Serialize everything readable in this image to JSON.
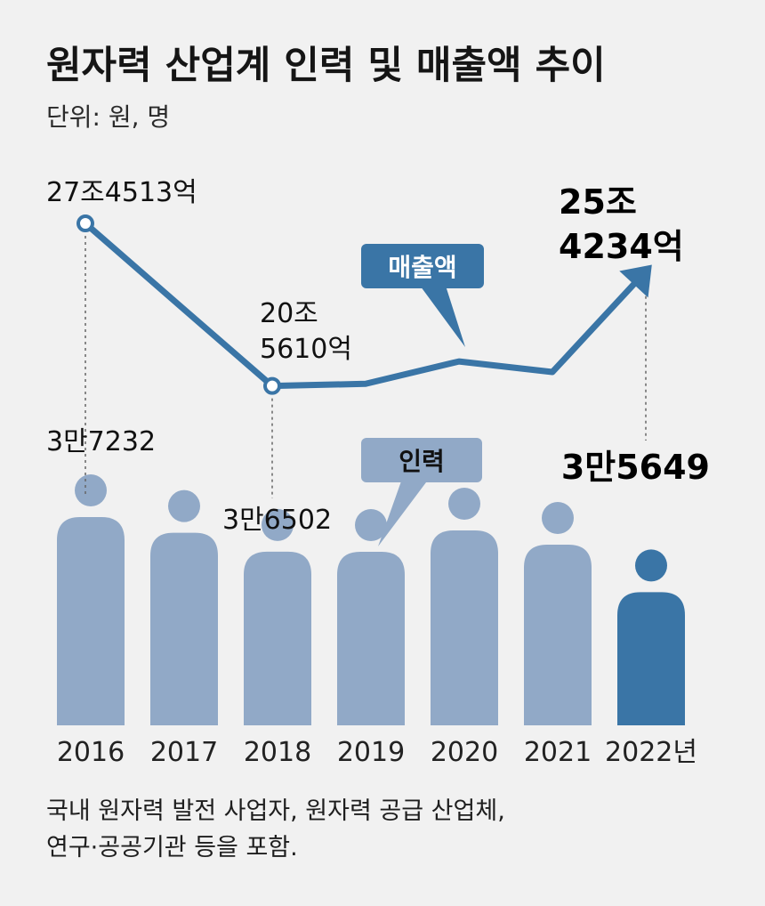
{
  "title": "원자력 산업계 인력 및 매출액 추이",
  "unit_note": "단위: 원, 명",
  "footnote_lines": [
    "국내 원자력 발전 사업자, 원자력 공급 산업체,",
    "연구·공공기관 등을 포함."
  ],
  "colors": {
    "background": "#f1f1f1",
    "line": "#3a75a6",
    "person": "#91a9c7",
    "person_highlight": "#3a75a6",
    "callout_sales": "#3a75a6",
    "callout_staff": "#91a9c7"
  },
  "chart_data": {
    "type": "bar",
    "categories": [
      "2016",
      "2017",
      "2018",
      "2019",
      "2020",
      "2021",
      "2022년"
    ],
    "series": [
      {
        "name": "인력",
        "unit": "명",
        "values": [
          37232,
          36900,
          36502,
          36500,
          36950,
          36650,
          35649
        ],
        "labels": [
          "3만7232",
          "",
          "3만6502",
          "",
          "",
          "",
          "3만5649"
        ],
        "highlight_index": 6
      },
      {
        "name": "매출액",
        "unit": "원",
        "type": "line",
        "values_eok": [
          274513,
          240000,
          205610,
          206500,
          216000,
          211500,
          254234
        ],
        "labels": [
          [
            "27조4513억"
          ],
          [],
          [
            "20조",
            "5610억"
          ],
          [],
          [],
          [],
          [
            "25조",
            "4234억"
          ]
        ],
        "highlight_index": 6
      }
    ],
    "callouts": [
      "매출액",
      "인력"
    ],
    "grid": false,
    "legend": "none"
  }
}
